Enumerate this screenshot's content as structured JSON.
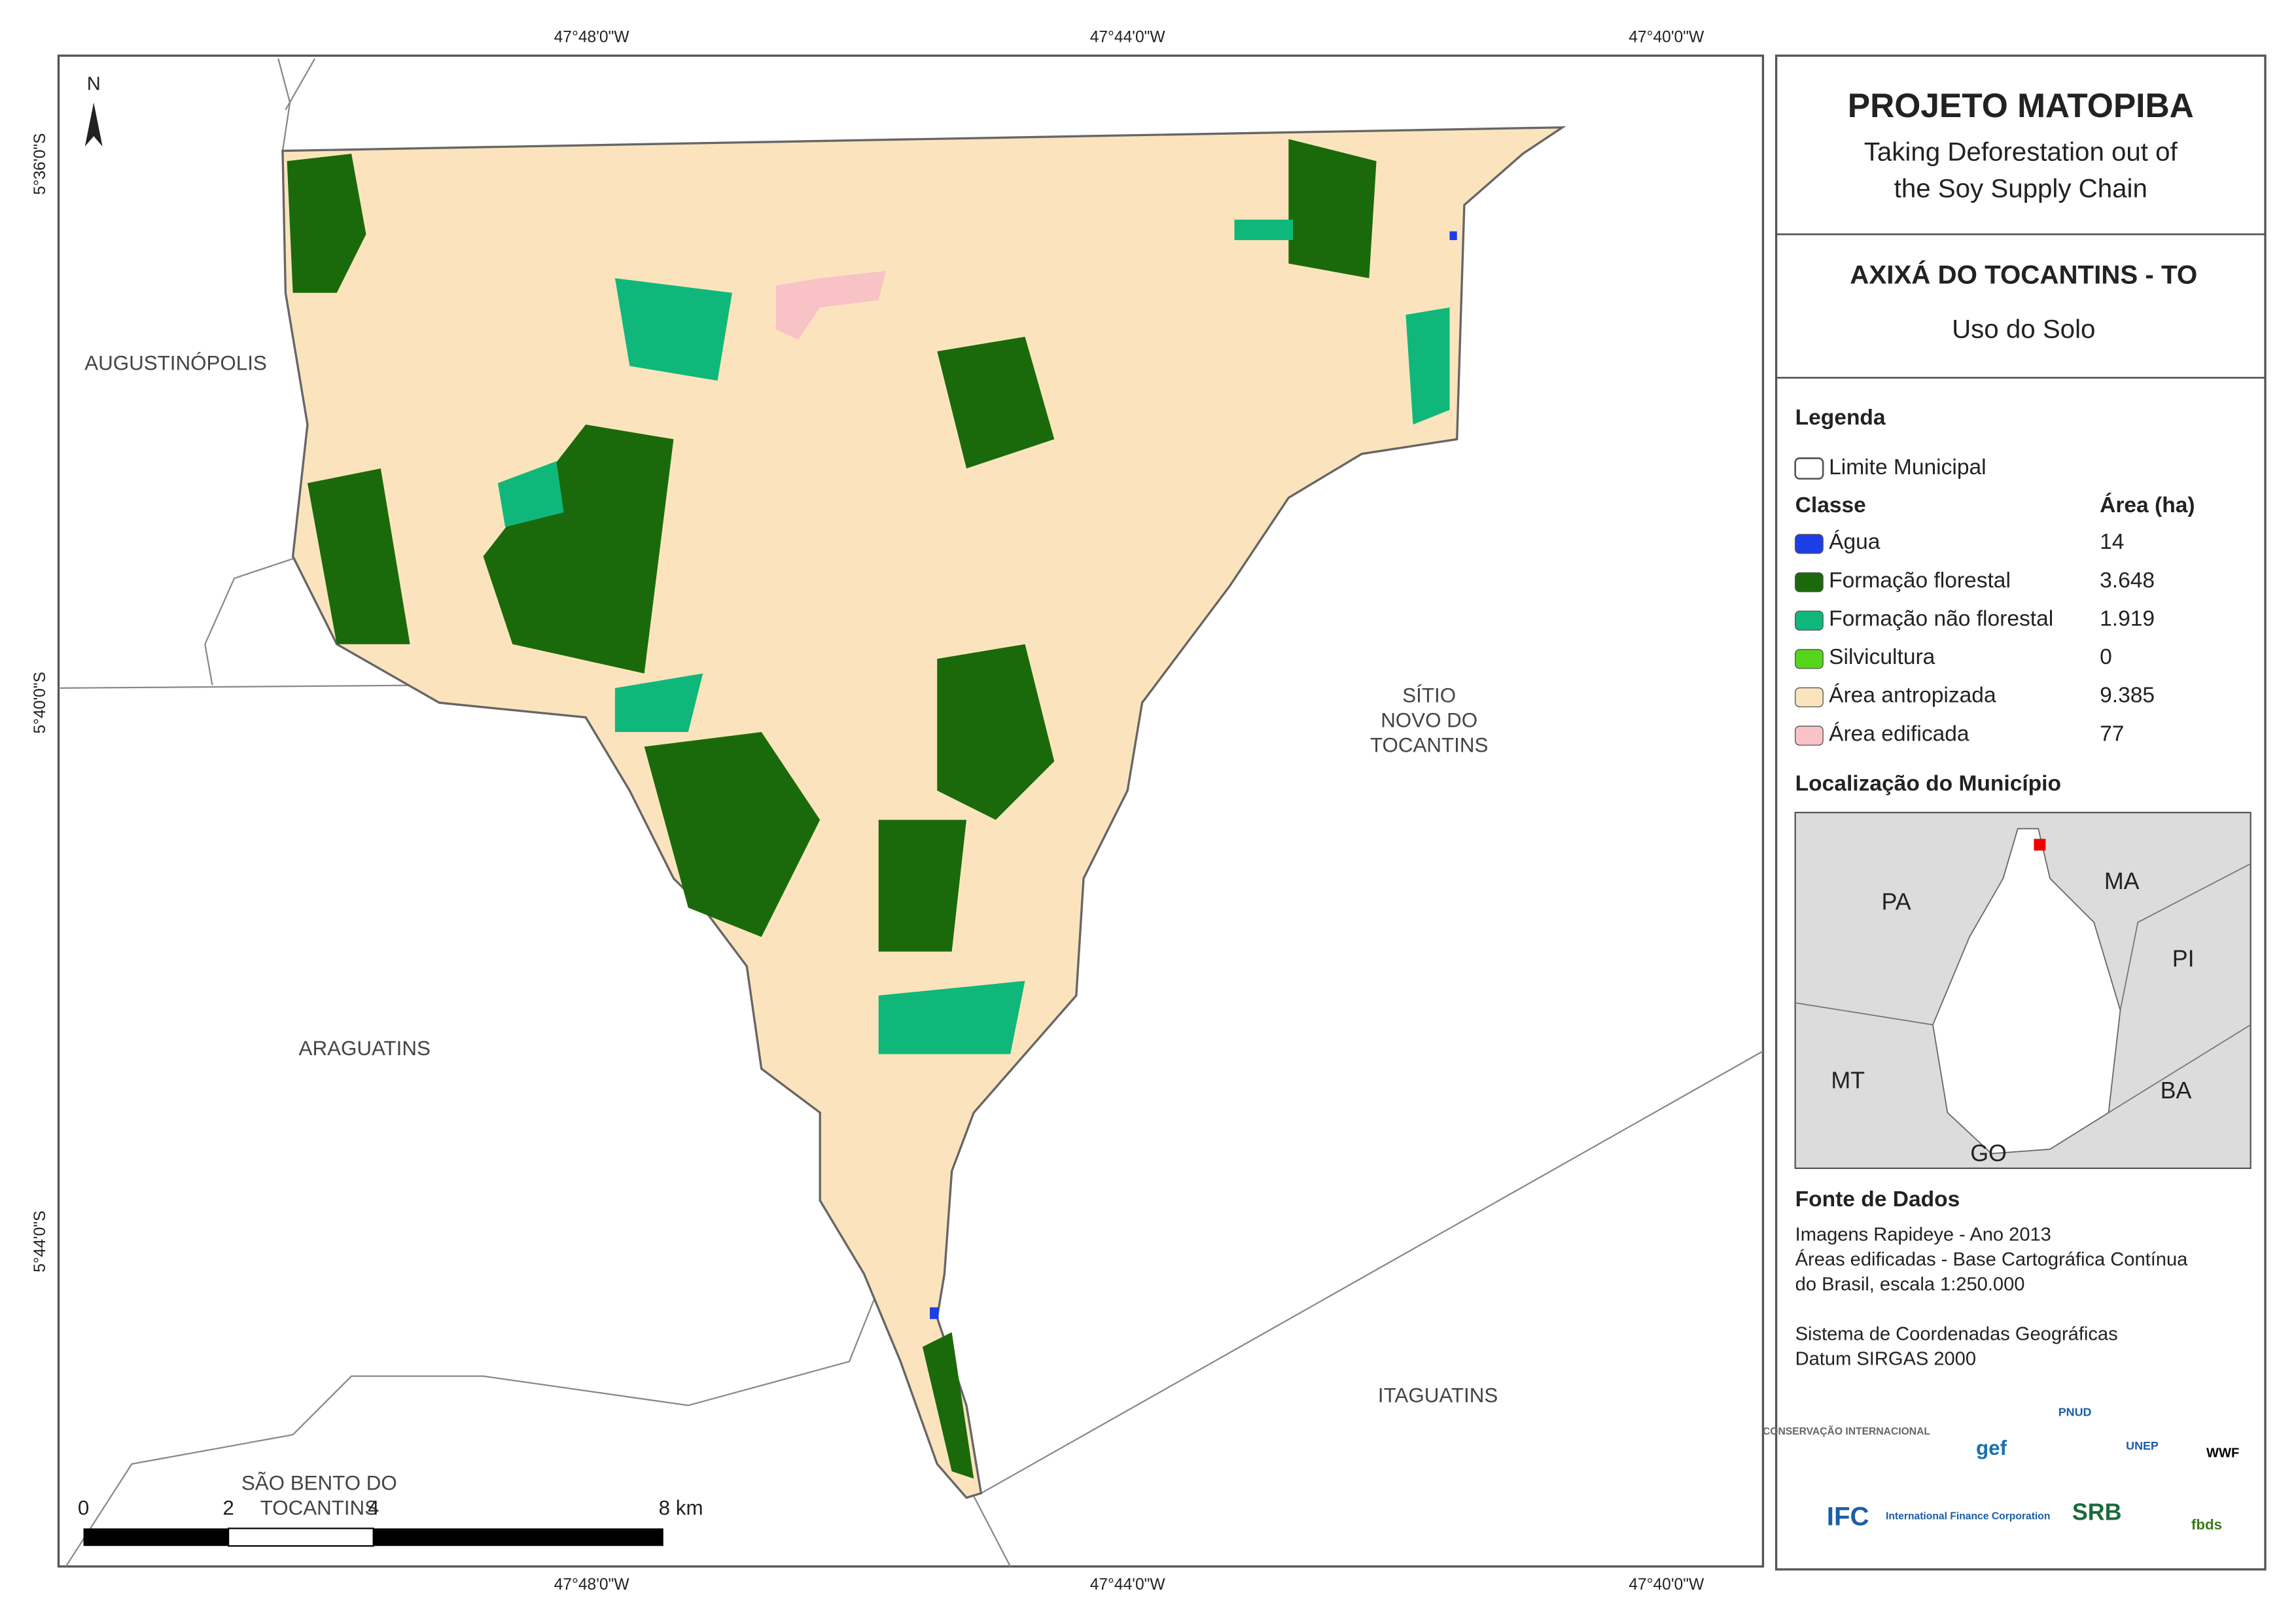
{
  "header": {
    "title": "PROJETO MATOPIBA",
    "subtitle": [
      "Taking Deforestation out of",
      "the Soy Supply Chain"
    ]
  },
  "municipality": {
    "name": "AXIXÁ DO TOCANTINS - TO",
    "theme": "Uso do Solo"
  },
  "legend": {
    "title": "Legenda",
    "boundary": "Limite Municipal",
    "class_header": "Classe",
    "area_header": "Área (ha)",
    "items": [
      {
        "label": "Água",
        "area": "14",
        "color": "#1c3ee6"
      },
      {
        "label": "Formação florestal",
        "area": "3.648",
        "color": "#1a6a0b"
      },
      {
        "label": "Formação não florestal",
        "area": "1.919",
        "color": "#10b77a"
      },
      {
        "label": "Silvicultura",
        "area": "0",
        "color": "#55d61a"
      },
      {
        "label": "Área antropizada",
        "area": "9.385",
        "color": "#fbe4bd"
      },
      {
        "label": "Área edificada",
        "area": "77",
        "color": "#f8c2c7"
      }
    ]
  },
  "location": {
    "title": "Localização do Município",
    "labels": [
      "PA",
      "MA",
      "PI",
      "MT",
      "BA",
      "GO"
    ]
  },
  "sources": {
    "title": "Fonte de Dados",
    "lines": [
      "Imagens Rapideye - Ano 2013",
      "Áreas edificadas - Base Cartográfica Contínua",
      "do Brasil, escala 1:250.000",
      "Sistema de Coordenadas Geográficas",
      "Datum SIRGAS 2000"
    ]
  },
  "logos": [
    "CONSERVAÇÃO INTERNACIONAL",
    "gef",
    "PNUD",
    "UNEP",
    "WWF",
    "IFC",
    "International Finance Corporation",
    "SRB",
    "fbds"
  ],
  "map": {
    "north": "N",
    "coords_x": [
      "47°48'0\"W",
      "47°44'0\"W",
      "47°40'0\"W"
    ],
    "coords_y": [
      "5°36'0\"S",
      "5°40'0\"S",
      "5°44'0\"S"
    ],
    "places": [
      [
        "AUGUSTINÓPOLIS"
      ],
      [
        "ARAGUATINS"
      ],
      [
        "SÍTIO",
        "NOVO DO",
        "TOCANTINS"
      ],
      [
        "ITAGUATINS"
      ],
      [
        "SÃO BENTO DO",
        "TOCANTINS"
      ]
    ],
    "scale": [
      "0",
      "2",
      "4",
      "8 km"
    ]
  }
}
